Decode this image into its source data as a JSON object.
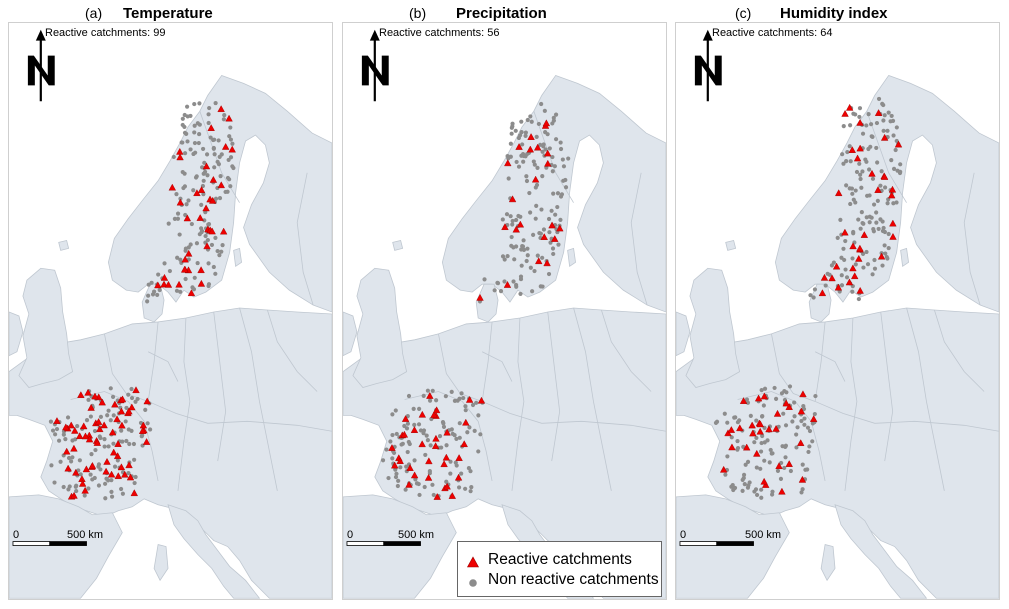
{
  "colors": {
    "land": "#dfe5ec",
    "border": "#bfc7d0",
    "reactive": "#ee0000",
    "non_reactive": "#8c8c8c",
    "frame": "#cfcfcf"
  },
  "panels": [
    {
      "letter": "(a)",
      "title": "Temperature",
      "count_label": "Reactive catchments",
      "count": 99,
      "scale_start": "0",
      "scale_end": "500 km",
      "north_icon": "north-arrow-icon",
      "density": {
        "reactive_france": 62,
        "reactive_nordic": 37
      }
    },
    {
      "letter": "(b)",
      "title": "Precipitation",
      "count_label": "Reactive catchments",
      "count": 56,
      "scale_start": "0",
      "scale_end": "500 km",
      "north_icon": "north-arrow-icon",
      "density": {
        "reactive_france": 34,
        "reactive_nordic": 22
      }
    },
    {
      "letter": "(c)",
      "title": "Humidity index",
      "count_label": "Reactive catchments",
      "count": 64,
      "scale_start": "0",
      "scale_end": "500 km",
      "north_icon": "north-arrow-icon",
      "density": {
        "reactive_france": 30,
        "reactive_nordic": 34
      }
    }
  ],
  "legend": {
    "reactive_label": "Reactive catchments",
    "non_reactive_label": "Non reactive catchments",
    "reactive_icon": "triangle-icon",
    "non_reactive_icon": "circle-icon"
  }
}
